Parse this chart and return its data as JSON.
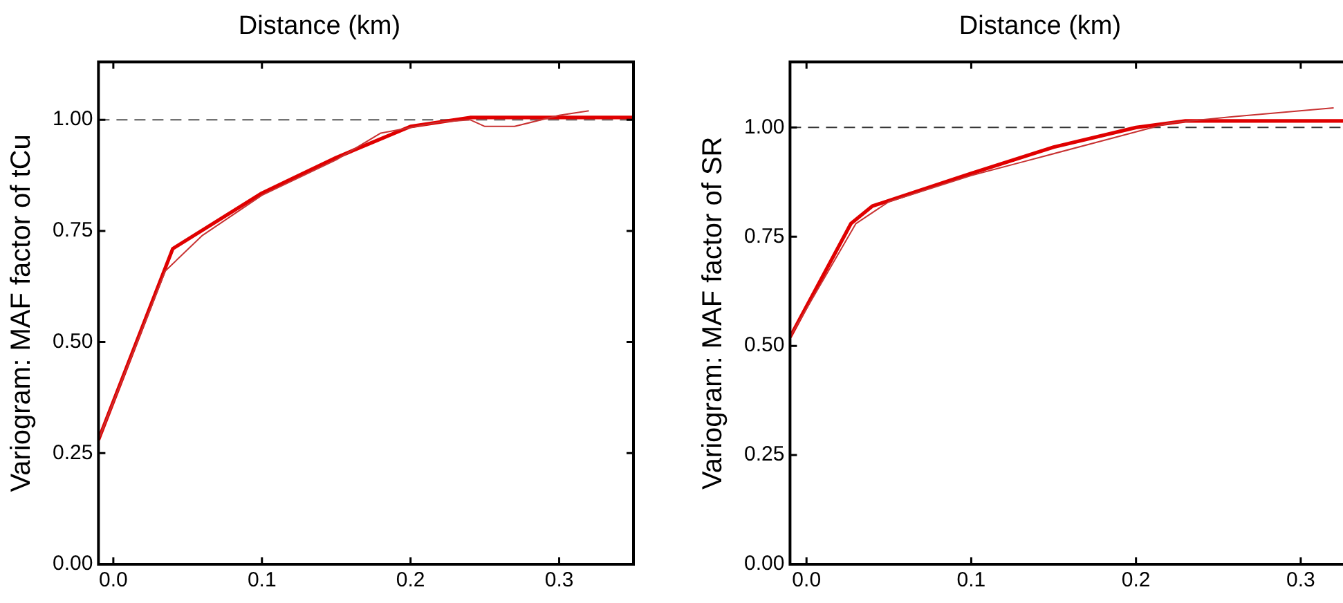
{
  "chart_data": [
    {
      "type": "line",
      "title": "Distance (km)",
      "ylabel": "Variogram: MAF factor of tCu",
      "xlim": [
        -0.01,
        0.35
      ],
      "xticks": [
        {
          "value": 0,
          "label": "0.0"
        },
        {
          "value": 0.1,
          "label": "0.1"
        },
        {
          "value": 0.2,
          "label": "0.2"
        },
        {
          "value": 0.3,
          "label": "0.3"
        }
      ],
      "ylim": [
        0,
        1.13
      ],
      "yticks": [
        {
          "value": 0,
          "label": "0.00"
        },
        {
          "value": 0.25,
          "label": "0.25"
        },
        {
          "value": 0.5,
          "label": "0.50"
        },
        {
          "value": 0.75,
          "label": "0.75"
        },
        {
          "value": 1,
          "label": "1.00"
        }
      ],
      "grid": false,
      "legend": false,
      "marker": "none",
      "ref_lines": [
        {
          "axis": "y",
          "value": 1,
          "color": "#555555",
          "line_style": "dashed"
        }
      ],
      "series": [
        {
          "color": "#c83232",
          "x": [
            -0.01,
            0.035,
            0.06,
            0.1,
            0.15,
            0.18,
            0.22,
            0.24,
            0.25,
            0.27,
            0.3,
            0.32
          ],
          "values": [
            0.28,
            0.66,
            0.74,
            0.83,
            0.91,
            0.97,
            0.995,
            1.0,
            0.985,
            0.985,
            1.01,
            1.02
          ]
        },
        {
          "color": "#e00000",
          "x": [
            -0.01,
            0.04,
            0.1,
            0.15,
            0.2,
            0.24,
            0.35
          ],
          "values": [
            0.28,
            0.71,
            0.835,
            0.915,
            0.985,
            1.005,
            1.005
          ]
        }
      ]
    },
    {
      "type": "line",
      "title": "Distance (km)",
      "ylabel": "Variogram: MAF factor of SR",
      "xlim": [
        -0.01,
        0.35
      ],
      "xticks": [
        {
          "value": 0,
          "label": "0.0"
        },
        {
          "value": 0.1,
          "label": "0.1"
        },
        {
          "value": 0.2,
          "label": "0.2"
        },
        {
          "value": 0.3,
          "label": "0.3"
        }
      ],
      "ylim": [
        0,
        1.15
      ],
      "yticks": [
        {
          "value": 0,
          "label": "0.00"
        },
        {
          "value": 0.25,
          "label": "0.25"
        },
        {
          "value": 0.5,
          "label": "0.50"
        },
        {
          "value": 0.75,
          "label": "0.75"
        },
        {
          "value": 1,
          "label": "1.00"
        }
      ],
      "grid": false,
      "legend": false,
      "marker": "none",
      "ref_lines": [
        {
          "axis": "y",
          "value": 1,
          "color": "#333333",
          "line_style": "dashed"
        }
      ],
      "series": [
        {
          "color": "#c83232",
          "x": [
            -0.01,
            0.03,
            0.05,
            0.1,
            0.13,
            0.19,
            0.22,
            0.26,
            0.32
          ],
          "values": [
            0.52,
            0.78,
            0.83,
            0.89,
            0.92,
            0.98,
            1.01,
            1.025,
            1.045
          ]
        },
        {
          "color": "#e00000",
          "x": [
            -0.01,
            0.027,
            0.04,
            0.1,
            0.15,
            0.2,
            0.23,
            0.35
          ],
          "values": [
            0.52,
            0.78,
            0.82,
            0.895,
            0.955,
            1.0,
            1.015,
            1.015
          ]
        }
      ]
    }
  ]
}
